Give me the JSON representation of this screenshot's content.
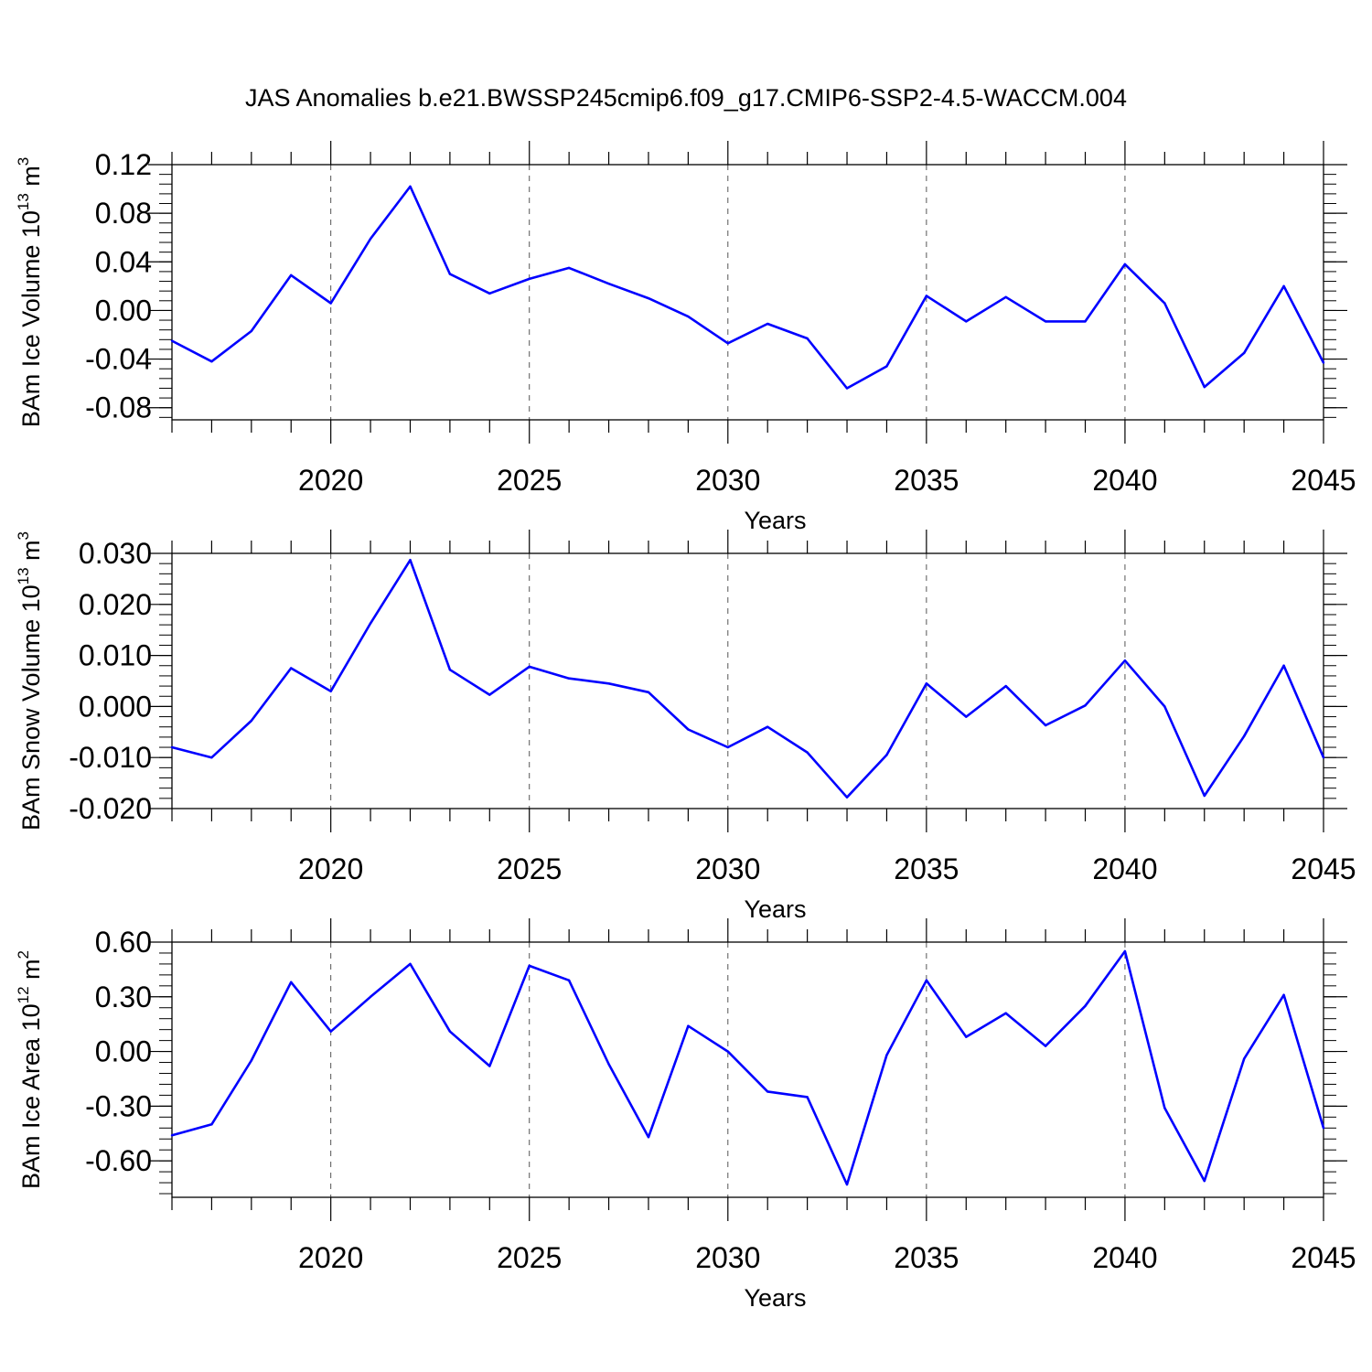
{
  "title": "JAS Anomalies b.e21.BWSSP245cmip6.f09_g17.CMIP6-SSP2-4.5-WACCM.004",
  "chart_data": [
    {
      "type": "line",
      "ylabel": {
        "prefix": "BAm Ice Volume 10",
        "exponent": "13",
        "unit": " m",
        "unit_exponent": "3"
      },
      "xlabel": "Years",
      "xlim": [
        2016,
        2045
      ],
      "ylim": [
        -0.09,
        0.12
      ],
      "yticks": [
        0.12,
        0.08,
        0.04,
        0.0,
        -0.04,
        -0.08
      ],
      "ytick_labels": [
        "0.12",
        "0.08",
        "0.04",
        "0.00",
        "-0.04",
        "-0.08"
      ],
      "xticks": [
        2020,
        2025,
        2030,
        2035,
        2040,
        2045
      ],
      "xtick_labels": [
        "2020",
        "2025",
        "2030",
        "2035",
        "2040",
        "2045"
      ],
      "line_color": "#0000ff",
      "x": [
        2016,
        2017,
        2018,
        2019,
        2020,
        2021,
        2022,
        2023,
        2024,
        2025,
        2026,
        2027,
        2028,
        2029,
        2030,
        2031,
        2032,
        2033,
        2034,
        2035,
        2036,
        2037,
        2038,
        2039,
        2040,
        2041,
        2042,
        2043,
        2044,
        2045
      ],
      "y": [
        -0.025,
        -0.042,
        -0.017,
        0.029,
        0.006,
        0.059,
        0.102,
        0.03,
        0.014,
        0.026,
        0.035,
        0.022,
        0.01,
        -0.005,
        -0.027,
        -0.011,
        -0.023,
        -0.064,
        -0.046,
        0.012,
        -0.009,
        0.011,
        -0.009,
        -0.009,
        0.038,
        0.006,
        -0.063,
        -0.035,
        0.02,
        -0.043
      ]
    },
    {
      "type": "line",
      "ylabel": {
        "prefix": "BAm Snow Volume 10",
        "exponent": "13",
        "unit": " m",
        "unit_exponent": "3"
      },
      "xlabel": "Years",
      "xlim": [
        2016,
        2045
      ],
      "ylim": [
        -0.02,
        0.03
      ],
      "yticks": [
        0.03,
        0.02,
        0.01,
        0.0,
        -0.01,
        -0.02
      ],
      "ytick_labels": [
        "0.030",
        "0.020",
        "0.010",
        "0.000",
        "-0.010",
        "-0.020"
      ],
      "xticks": [
        2020,
        2025,
        2030,
        2035,
        2040,
        2045
      ],
      "xtick_labels": [
        "2020",
        "2025",
        "2030",
        "2035",
        "2040",
        "2045"
      ],
      "line_color": "#0000ff",
      "x": [
        2016,
        2017,
        2018,
        2019,
        2020,
        2021,
        2022,
        2023,
        2024,
        2025,
        2026,
        2027,
        2028,
        2029,
        2030,
        2031,
        2032,
        2033,
        2034,
        2035,
        2036,
        2037,
        2038,
        2039,
        2040,
        2041,
        2042,
        2043,
        2044,
        2045
      ],
      "y": [
        -0.008,
        -0.01,
        -0.0028,
        0.0075,
        0.003,
        0.0163,
        0.0287,
        0.0072,
        0.0023,
        0.0078,
        0.0055,
        0.0045,
        0.0028,
        -0.0045,
        -0.008,
        -0.004,
        -0.009,
        -0.0178,
        -0.0095,
        0.0045,
        -0.002,
        0.004,
        -0.0037,
        0.0002,
        0.009,
        0.0,
        -0.0175,
        -0.0058,
        0.008,
        -0.01
      ]
    },
    {
      "type": "line",
      "ylabel": {
        "prefix": "BAm Ice Area 10",
        "exponent": "12",
        "unit": " m",
        "unit_exponent": "2"
      },
      "xlabel": "Years",
      "xlim": [
        2016,
        2045
      ],
      "ylim": [
        -0.8,
        0.6
      ],
      "yticks": [
        0.6,
        0.3,
        0.0,
        -0.3,
        -0.6
      ],
      "ytick_labels": [
        "0.60",
        "0.30",
        "0.00",
        "-0.30",
        "-0.60"
      ],
      "xticks": [
        2020,
        2025,
        2030,
        2035,
        2040,
        2045
      ],
      "xtick_labels": [
        "2020",
        "2025",
        "2030",
        "2035",
        "2040",
        "2045"
      ],
      "line_color": "#0000ff",
      "x": [
        2016,
        2017,
        2018,
        2019,
        2020,
        2021,
        2022,
        2023,
        2024,
        2025,
        2026,
        2027,
        2028,
        2029,
        2030,
        2031,
        2032,
        2033,
        2034,
        2035,
        2036,
        2037,
        2038,
        2039,
        2040,
        2041,
        2042,
        2043,
        2044,
        2045
      ],
      "y": [
        -0.46,
        -0.4,
        -0.05,
        0.38,
        0.11,
        0.3,
        0.48,
        0.11,
        -0.08,
        0.47,
        0.39,
        -0.07,
        -0.47,
        0.14,
        0.0,
        -0.22,
        -0.25,
        -0.73,
        -0.02,
        0.39,
        0.08,
        0.21,
        0.03,
        0.25,
        0.55,
        -0.31,
        -0.71,
        -0.04,
        0.31,
        -0.42
      ]
    }
  ]
}
